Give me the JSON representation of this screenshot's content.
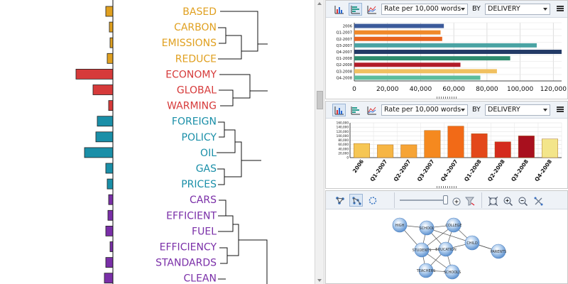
{
  "dendrogram": {
    "terms": [
      {
        "label": "BASED",
        "color": "#e0a020",
        "bar": 10
      },
      {
        "label": "CARBON",
        "color": "#e0a020",
        "bar": 5
      },
      {
        "label": "EMISSIONS",
        "color": "#e0a020",
        "bar": 4
      },
      {
        "label": "REDUCE",
        "color": "#e0a020",
        "bar": 8
      },
      {
        "label": "ECONOMY",
        "color": "#d63a3a",
        "bar": 52
      },
      {
        "label": "GLOBAL",
        "color": "#d63a3a",
        "bar": 28
      },
      {
        "label": "WARMING",
        "color": "#d63a3a",
        "bar": 6
      },
      {
        "label": "FOREIGN",
        "color": "#1a8fa8",
        "bar": 22
      },
      {
        "label": "POLICY",
        "color": "#1a8fa8",
        "bar": 24
      },
      {
        "label": "OIL",
        "color": "#1a8fa8",
        "bar": 40
      },
      {
        "label": "GAS",
        "color": "#1a8fa8",
        "bar": 10
      },
      {
        "label": "PRICES",
        "color": "#1a8fa8",
        "bar": 8
      },
      {
        "label": "CARS",
        "color": "#7a2fa8",
        "bar": 6
      },
      {
        "label": "EFFICIENT",
        "color": "#7a2fa8",
        "bar": 7
      },
      {
        "label": "FUEL",
        "color": "#7a2fa8",
        "bar": 10
      },
      {
        "label": "EFFICIENCY",
        "color": "#7a2fa8",
        "bar": 4
      },
      {
        "label": "STANDARDS",
        "color": "#7a2fa8",
        "bar": 10
      },
      {
        "label": "CLEAN",
        "color": "#7a2fa8",
        "bar": 12
      }
    ]
  },
  "panels": {
    "top": {
      "metric_select": "Rate per 10,000 words",
      "by_label": "BY",
      "group_select": "DELIVERY"
    },
    "mid": {
      "metric_select": "Rate per 10,000 words",
      "by_label": "BY",
      "group_select": "DELIVERY"
    },
    "network": {
      "nodes": [
        {
          "label": "HIGH"
        },
        {
          "label": "SCHOOL"
        },
        {
          "label": "COLLEGE"
        },
        {
          "label": "CHILD"
        },
        {
          "label": "STUDENTS"
        },
        {
          "label": "EDUCATION"
        },
        {
          "label": "PARENTS"
        },
        {
          "label": "TEACHERS"
        },
        {
          "label": "SCHOOLS"
        }
      ]
    }
  },
  "chart_data": [
    {
      "type": "bar",
      "orientation": "horizontal",
      "categories": [
        "2006",
        "Q1-2007",
        "Q2-2007",
        "Q3-2007",
        "Q4-2007",
        "Q1-2008",
        "Q2-2008",
        "Q3-2008",
        "Q4-2008"
      ],
      "values": [
        54000,
        52000,
        53000,
        110000,
        125000,
        94000,
        64000,
        86000,
        76000
      ],
      "colors": [
        "#3b5a9a",
        "#f0892a",
        "#e8641e",
        "#4aa3a3",
        "#223a66",
        "#2e8b6e",
        "#b11d2a",
        "#f0c060",
        "#5cbc9c"
      ],
      "xticks": [
        "0",
        "20,000",
        "40,000",
        "60,000",
        "80,000",
        "100,000",
        "120,000"
      ],
      "xlim": [
        0,
        125000
      ],
      "grid": true
    },
    {
      "type": "bar",
      "orientation": "vertical",
      "categories": [
        "2006",
        "Q1-2007",
        "Q2-2007",
        "Q3-2007",
        "Q4-2007",
        "Q1-2008",
        "Q2-2008",
        "Q3-2008",
        "Q4-2008"
      ],
      "values": [
        65000,
        59000,
        59000,
        125000,
        145000,
        110000,
        73000,
        100000,
        86000
      ],
      "colors": [
        "#f6c654",
        "#f6b544",
        "#f6a436",
        "#f5891f",
        "#f26a17",
        "#e3481a",
        "#d42b1c",
        "#a8101e",
        "#f3e58a"
      ],
      "yticks": [
        "0",
        "20,000",
        "40,000",
        "60,000",
        "80,000",
        "100,000",
        "120,000",
        "140,000",
        "160,000"
      ],
      "ylim": [
        0,
        160000
      ],
      "grid": true
    }
  ]
}
